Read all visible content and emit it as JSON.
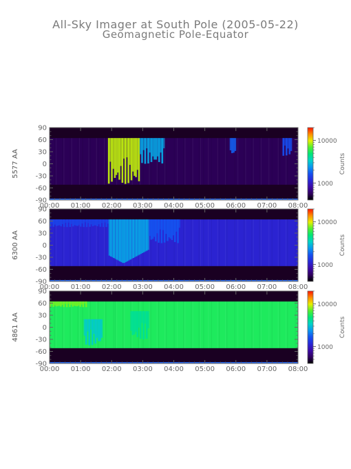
{
  "title": "All-Sky Imager at South Pole (2005-05-22)",
  "subtitle": "Geomagnetic Pole-Equator",
  "colorbar_label": "Counts",
  "colorbar_ticks": [
    "10000",
    "1000"
  ],
  "colormap": [
    "#000000",
    "#300060",
    "#3c0aa8",
    "#2828d8",
    "#1450f0",
    "#0a96f0",
    "#00d2c8",
    "#00e678",
    "#50f030",
    "#e6f000",
    "#ff8c00",
    "#ff1400"
  ],
  "x_tick_labels": [
    "00:00",
    "01:00",
    "02:00",
    "03:00",
    "04:00",
    "05:00",
    "06:00",
    "07:00",
    "08:00"
  ],
  "y_tick_labels": [
    "90",
    "60",
    "30",
    "0",
    "-30",
    "-60",
    "-90"
  ],
  "chart_data": [
    {
      "type": "heatmap",
      "ylabel": "5577 AA",
      "x_range_hours": [
        0,
        8
      ],
      "ylim": [
        -90,
        90
      ],
      "valid_lat_range": [
        -52,
        64
      ],
      "base_counts": 550,
      "colorbar_log_range": [
        400,
        20000
      ],
      "features": [
        {
          "t_start": 1.88,
          "t_end": 2.9,
          "lat_low": -50,
          "lat_high": 64,
          "peak_counts": 9000
        },
        {
          "t_start": 2.9,
          "t_end": 3.7,
          "lat_low": 0,
          "lat_high": 64,
          "peak_counts": 2600
        },
        {
          "t_start": 5.8,
          "t_end": 6.0,
          "lat_low": 20,
          "lat_high": 64,
          "peak_counts": 1800
        },
        {
          "t_start": 7.5,
          "t_end": 7.8,
          "lat_low": 20,
          "lat_high": 64,
          "peak_counts": 1600
        }
      ]
    },
    {
      "type": "heatmap",
      "ylabel": "6300 AA",
      "x_range_hours": [
        0,
        8
      ],
      "ylim": [
        -90,
        90
      ],
      "valid_lat_range": [
        -52,
        64
      ],
      "base_counts": 1100,
      "colorbar_log_range": [
        400,
        20000
      ],
      "features": [
        {
          "t_start": 0.0,
          "t_end": 1.9,
          "lat_low": 45,
          "lat_high": 64,
          "peak_counts": 1500
        },
        {
          "t_start": 1.9,
          "t_end": 3.2,
          "lat_low": -45,
          "lat_high": 64,
          "peak_counts": 2600
        },
        {
          "t_start": 3.2,
          "t_end": 4.2,
          "lat_low": 5,
          "lat_high": 64,
          "peak_counts": 1700
        }
      ]
    },
    {
      "type": "heatmap",
      "ylabel": "4861 AA",
      "x_range_hours": [
        0,
        8
      ],
      "ylim": [
        -90,
        90
      ],
      "valid_lat_range": [
        -52,
        64
      ],
      "base_counts": 5500,
      "colorbar_log_range": [
        400,
        20000
      ],
      "features": [
        {
          "t_start": 0.0,
          "t_end": 1.2,
          "lat_low": 50,
          "lat_high": 64,
          "peak_counts": 7500
        },
        {
          "t_start": 1.1,
          "t_end": 1.7,
          "lat_low": -45,
          "lat_high": 20,
          "peak_counts": 3200
        },
        {
          "t_start": 2.6,
          "t_end": 3.2,
          "lat_low": -30,
          "lat_high": 40,
          "peak_counts": 4200
        }
      ]
    }
  ]
}
